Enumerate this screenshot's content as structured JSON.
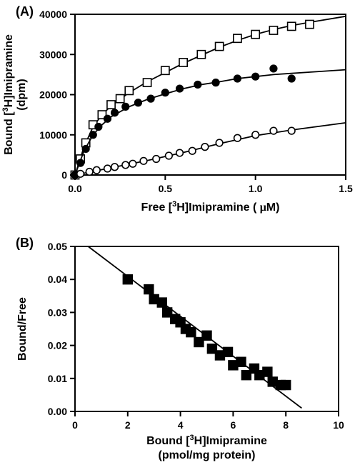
{
  "panelA": {
    "label": "(A)",
    "type": "scatter",
    "xlabel": "Free [³H]Imipramine ( μM)",
    "ylabel": "Bound [³H]Imipramine (dpm)",
    "xlabel_parts": [
      "Free [",
      "3",
      "H]Imipramine ( ",
      "μ",
      "M)"
    ],
    "ylabel_parts": [
      "Bound [",
      "3",
      "H]Imipramine",
      "(dpm)"
    ],
    "xlim": [
      0.0,
      1.5
    ],
    "ylim": [
      0,
      40000
    ],
    "xticks": [
      0.0,
      0.5,
      1.0,
      1.5
    ],
    "yticks": [
      0,
      10000,
      20000,
      30000,
      40000
    ],
    "axis_color": "#000000",
    "tick_fontsize": 14,
    "label_fontsize": 16,
    "axis_linewidth": 2,
    "series": [
      {
        "marker": "open-square",
        "color": "#000000",
        "fill": "none",
        "size": 7,
        "points": [
          [
            0.0,
            0
          ],
          [
            0.03,
            4000
          ],
          [
            0.06,
            8000
          ],
          [
            0.1,
            12500
          ],
          [
            0.15,
            15000
          ],
          [
            0.2,
            17500
          ],
          [
            0.25,
            19000
          ],
          [
            0.3,
            21000
          ],
          [
            0.4,
            23000
          ],
          [
            0.5,
            26000
          ],
          [
            0.6,
            28000
          ],
          [
            0.7,
            30000
          ],
          [
            0.8,
            32000
          ],
          [
            0.9,
            34000
          ],
          [
            1.0,
            35000
          ],
          [
            1.1,
            36000
          ],
          [
            1.2,
            37000
          ],
          [
            1.3,
            37500
          ]
        ],
        "curve": [
          [
            0.0,
            0
          ],
          [
            0.05,
            7000
          ],
          [
            0.1,
            12000
          ],
          [
            0.15,
            15000
          ],
          [
            0.2,
            17200
          ],
          [
            0.3,
            20500
          ],
          [
            0.4,
            23200
          ],
          [
            0.5,
            25500
          ],
          [
            0.6,
            27800
          ],
          [
            0.7,
            29800
          ],
          [
            0.8,
            31800
          ],
          [
            0.9,
            33500
          ],
          [
            1.0,
            35000
          ],
          [
            1.1,
            36200
          ],
          [
            1.2,
            37200
          ],
          [
            1.3,
            38000
          ],
          [
            1.5,
            39500
          ]
        ]
      },
      {
        "marker": "filled-circle",
        "color": "#000000",
        "fill": "#000000",
        "size": 6,
        "points": [
          [
            0.0,
            0
          ],
          [
            0.03,
            3000
          ],
          [
            0.06,
            6500
          ],
          [
            0.1,
            10000
          ],
          [
            0.13,
            12000
          ],
          [
            0.18,
            14000
          ],
          [
            0.22,
            15500
          ],
          [
            0.28,
            17000
          ],
          [
            0.35,
            18000
          ],
          [
            0.42,
            19000
          ],
          [
            0.5,
            20500
          ],
          [
            0.58,
            21500
          ],
          [
            0.68,
            22500
          ],
          [
            0.78,
            23000
          ],
          [
            0.9,
            24000
          ],
          [
            1.0,
            24500
          ],
          [
            1.1,
            26500
          ],
          [
            1.2,
            24000
          ]
        ],
        "curve": [
          [
            0.0,
            0
          ],
          [
            0.05,
            6000
          ],
          [
            0.1,
            10000
          ],
          [
            0.15,
            12500
          ],
          [
            0.2,
            14500
          ],
          [
            0.3,
            17000
          ],
          [
            0.4,
            18800
          ],
          [
            0.5,
            20200
          ],
          [
            0.6,
            21500
          ],
          [
            0.7,
            22500
          ],
          [
            0.8,
            23200
          ],
          [
            0.9,
            24000
          ],
          [
            1.0,
            24500
          ],
          [
            1.1,
            25000
          ],
          [
            1.2,
            25300
          ],
          [
            1.3,
            25600
          ],
          [
            1.5,
            26200
          ]
        ]
      },
      {
        "marker": "open-circle",
        "color": "#000000",
        "fill": "none",
        "size": 6,
        "points": [
          [
            0.03,
            300
          ],
          [
            0.08,
            800
          ],
          [
            0.12,
            1200
          ],
          [
            0.18,
            1600
          ],
          [
            0.22,
            2000
          ],
          [
            0.28,
            2500
          ],
          [
            0.32,
            2800
          ],
          [
            0.38,
            3500
          ],
          [
            0.45,
            4000
          ],
          [
            0.52,
            4800
          ],
          [
            0.58,
            5500
          ],
          [
            0.65,
            6000
          ],
          [
            0.72,
            7000
          ],
          [
            0.8,
            8000
          ],
          [
            0.9,
            9200
          ],
          [
            1.0,
            10000
          ],
          [
            1.1,
            11000
          ],
          [
            1.2,
            11000
          ]
        ],
        "curve": [
          [
            0.0,
            0
          ],
          [
            0.2,
            1800
          ],
          [
            0.4,
            3600
          ],
          [
            0.6,
            5600
          ],
          [
            0.8,
            7800
          ],
          [
            1.0,
            9800
          ],
          [
            1.2,
            11200
          ],
          [
            1.5,
            13000
          ]
        ]
      }
    ]
  },
  "panelB": {
    "label": "(B)",
    "type": "scatter",
    "xlabel": "Bound [³H]Imipramine (pmol/mg protein)",
    "ylabel": "Bound/Free",
    "xlabel_parts": [
      "Bound [",
      "3",
      "H]Imipramine",
      "(pmol/mg protein)"
    ],
    "xlim": [
      0,
      10
    ],
    "ylim": [
      0.0,
      0.05
    ],
    "xticks": [
      0,
      2,
      4,
      6,
      8,
      10
    ],
    "yticks": [
      0.0,
      0.01,
      0.02,
      0.03,
      0.04,
      0.05
    ],
    "axis_color": "#000000",
    "tick_fontsize": 14,
    "label_fontsize": 16,
    "axis_linewidth": 2,
    "series": [
      {
        "marker": "filled-square",
        "color": "#000000",
        "fill": "#000000",
        "size": 8,
        "points": [
          [
            2.0,
            0.04
          ],
          [
            2.8,
            0.037
          ],
          [
            3.0,
            0.034
          ],
          [
            3.3,
            0.033
          ],
          [
            3.5,
            0.03
          ],
          [
            3.8,
            0.028
          ],
          [
            4.0,
            0.027
          ],
          [
            4.2,
            0.025
          ],
          [
            4.4,
            0.024
          ],
          [
            4.7,
            0.021
          ],
          [
            5.0,
            0.023
          ],
          [
            5.2,
            0.019
          ],
          [
            5.5,
            0.017
          ],
          [
            5.8,
            0.018
          ],
          [
            6.0,
            0.014
          ],
          [
            6.3,
            0.015
          ],
          [
            6.5,
            0.011
          ],
          [
            6.8,
            0.013
          ],
          [
            7.0,
            0.011
          ],
          [
            7.3,
            0.012
          ],
          [
            7.5,
            0.009
          ],
          [
            7.8,
            0.008
          ],
          [
            8.0,
            0.008
          ]
        ],
        "line": [
          [
            0.5,
            0.05
          ],
          [
            8.6,
            0.001
          ]
        ]
      }
    ]
  },
  "colors": {
    "background": "#ffffff",
    "axis": "#000000",
    "text": "#000000"
  }
}
